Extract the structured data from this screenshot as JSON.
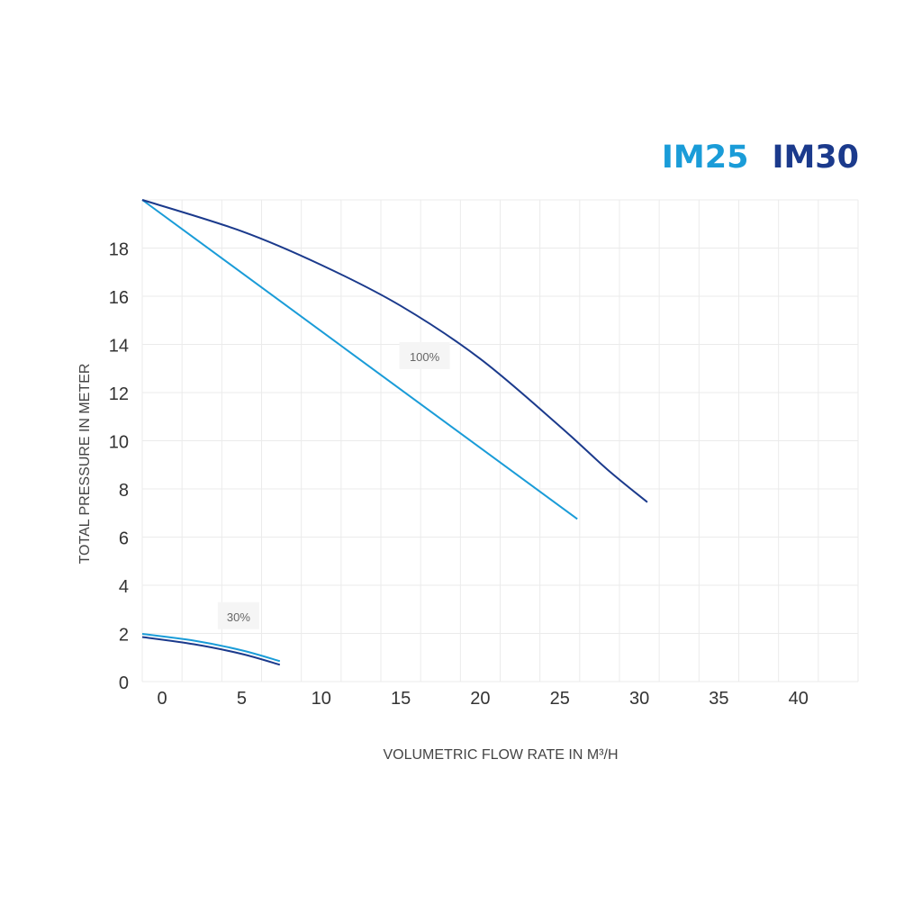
{
  "chart_data": {
    "type": "line",
    "title": "",
    "xlabel": "VOLUMETRIC FLOW RATE IN M³/H",
    "ylabel": "TOTAL PRESSURE IN METER",
    "xlim": [
      -1.25,
      43.75
    ],
    "ylim": [
      0,
      20
    ],
    "x_ticks": [
      0,
      5,
      10,
      15,
      20,
      25,
      30,
      35,
      40
    ],
    "y_ticks": [
      0,
      2,
      4,
      6,
      8,
      10,
      12,
      14,
      16,
      18
    ],
    "grid": true,
    "legend": [
      {
        "name": "IM25",
        "color": "#1a9cd8"
      },
      {
        "name": "IM30",
        "color": "#1b3a8c"
      }
    ],
    "legend_position": "top-right",
    "annotations": [
      {
        "text": "100%",
        "x": 16.5,
        "y": 13.5
      },
      {
        "text": "30%",
        "x": 4.8,
        "y": 2.7
      }
    ],
    "series": [
      {
        "name": "IM25",
        "label": "100%",
        "color": "#1a9cd8",
        "points": [
          [
            -1.25,
            20
          ],
          [
            26.1,
            6.75
          ]
        ]
      },
      {
        "name": "IM30",
        "label": "100%",
        "color": "#1b3a8c",
        "points": [
          [
            -1.25,
            20
          ],
          [
            5,
            18.7
          ],
          [
            10,
            17.3
          ],
          [
            15,
            15.6
          ],
          [
            20,
            13.4
          ],
          [
            25,
            10.6
          ],
          [
            28,
            8.8
          ],
          [
            30.5,
            7.45
          ]
        ]
      },
      {
        "name": "IM25",
        "label": "30%",
        "color": "#1a9cd8",
        "points": [
          [
            -1.25,
            1.98
          ],
          [
            2,
            1.7
          ],
          [
            5,
            1.3
          ],
          [
            7.4,
            0.85
          ]
        ]
      },
      {
        "name": "IM30",
        "label": "30%",
        "color": "#1b3a8c",
        "points": [
          [
            -1.25,
            1.85
          ],
          [
            2,
            1.55
          ],
          [
            5,
            1.15
          ],
          [
            7.4,
            0.7
          ]
        ]
      }
    ]
  }
}
